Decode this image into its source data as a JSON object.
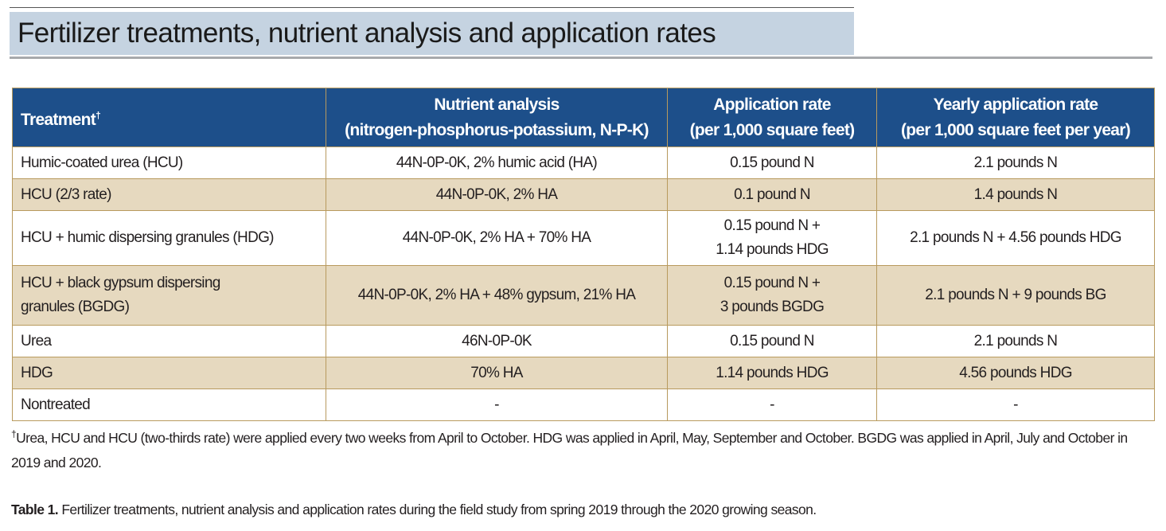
{
  "title": "Fertilizer treatments, nutrient analysis and application rates",
  "table": {
    "headers": [
      {
        "line1": "Treatment",
        "mark": "†"
      },
      {
        "line1": "Nutrient analysis",
        "line2": "(nitrogen-phosphorus-potassium, N-P-K)"
      },
      {
        "line1": "Application rate",
        "line2": "(per 1,000 square feet)"
      },
      {
        "line1": "Yearly application rate",
        "line2": "(per 1,000 square feet per year)"
      }
    ],
    "rows": [
      {
        "treatment": [
          "Humic-coated urea (HCU)"
        ],
        "analysis": "44N-0P-0K, 2% humic acid (HA)",
        "rate": [
          "0.15 pound N"
        ],
        "yearly": "2.1 pounds N"
      },
      {
        "treatment": [
          "HCU (2/3 rate)"
        ],
        "analysis": "44N-0P-0K, 2% HA",
        "rate": [
          "0.1 pound N"
        ],
        "yearly": "1.4 pounds N"
      },
      {
        "treatment": [
          "HCU + humic dispersing granules (HDG)"
        ],
        "analysis": "44N-0P-0K, 2% HA + 70% HA",
        "rate": [
          "0.15 pound N +",
          "1.14 pounds HDG"
        ],
        "yearly": "2.1 pounds N + 4.56 pounds HDG"
      },
      {
        "treatment": [
          "HCU + black gypsum dispersing",
          "granules (BGDG)"
        ],
        "analysis": "44N-0P-0K, 2% HA + 48% gypsum, 21% HA",
        "rate": [
          "0.15 pound N +",
          "3 pounds BGDG"
        ],
        "yearly": "2.1 pounds N + 9 pounds BG"
      },
      {
        "treatment": [
          "Urea"
        ],
        "analysis": "46N-0P-0K",
        "rate": [
          "0.15 pound N"
        ],
        "yearly": "2.1 pounds N"
      },
      {
        "treatment": [
          "HDG"
        ],
        "analysis": "70% HA",
        "rate": [
          "1.14 pounds HDG"
        ],
        "yearly": "4.56 pounds HDG"
      },
      {
        "treatment": [
          "Nontreated"
        ],
        "analysis": "-",
        "rate": [
          "-"
        ],
        "yearly": "-"
      }
    ]
  },
  "footnote": {
    "mark": "†",
    "text": "Urea, HCU and HCU (two-thirds rate) were applied every two weeks from April to October. HDG was applied in April, May, September and October. BGDG was applied in April, July and October in 2019 and 2020."
  },
  "caption": {
    "label": "Table 1.",
    "text": " Fertilizer treatments, nutrient analysis and application rates during the field study from spring 2019 through the 2020 growing season."
  },
  "colors": {
    "header_bg": "#1d4f8a",
    "alt_row": "#e6d9bf",
    "border": "#b89a5e",
    "title_bg": "#c5d3e1"
  }
}
